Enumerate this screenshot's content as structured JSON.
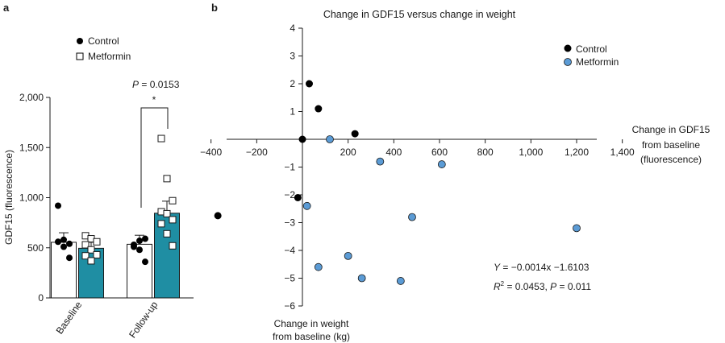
{
  "figure": {
    "panel_a_label": "a",
    "panel_b_label": "b"
  },
  "chart_data": [
    {
      "type": "bar",
      "panel": "a",
      "ylabel": "GDF15 (fluorescence)",
      "ylim": [
        0,
        2000
      ],
      "yticks": [
        0,
        500,
        1000,
        1500,
        2000
      ],
      "ytick_labels": [
        "0",
        "500",
        "1,000",
        "1,500",
        "2,000"
      ],
      "categories": [
        "Baseline",
        "Follow-up"
      ],
      "legend": {
        "placement": "top",
        "entries": [
          "Control",
          "Metformin"
        ]
      },
      "series": [
        {
          "name": "Control",
          "marker": "filled-circle",
          "bar_fill": "#ffffff",
          "values": [
            555,
            535
          ],
          "errors": [
            95,
            90
          ],
          "points": [
            [
              920,
              580,
              540,
              560,
              510,
              400
            ],
            [
              530,
              570,
              590,
              510,
              480,
              360
            ]
          ]
        },
        {
          "name": "Metformin",
          "marker": "open-square",
          "bar_fill": "#1f8ea3",
          "values": [
            495,
            845
          ],
          "errors": [
            60,
            120
          ],
          "points": [
            [
              620,
              590,
              560,
              530,
              480,
              430,
              420,
              370
            ],
            [
              1590,
              1190,
              970,
              860,
              840,
              780,
              740,
              640,
              520
            ]
          ]
        }
      ],
      "annotation": {
        "text": "P = 0.0153",
        "p_prefix": "P",
        "p_rest": " = 0.0153",
        "star": "*"
      }
    },
    {
      "type": "scatter",
      "panel": "b",
      "title": "Change in GDF15 versus change in weight",
      "xlabel_lines": [
        "Change in GDF15",
        "from baseline",
        "(fluorescence)"
      ],
      "ylabel_lines": [
        "Change in weight",
        "from baseline (kg)"
      ],
      "xlim": [
        -500,
        1500
      ],
      "ylim": [
        -6,
        4
      ],
      "xticks": [
        -400,
        -200,
        200,
        400,
        600,
        800,
        1000,
        1200,
        1400
      ],
      "xtick_labels": [
        "−400",
        "−200",
        "200",
        "400",
        "600",
        "800",
        "1,000",
        "1,200",
        "1,400"
      ],
      "yticks": [
        -6,
        -5,
        -4,
        -3,
        -2,
        -1,
        1,
        2,
        3,
        4
      ],
      "ytick_labels": [
        "−6",
        "−5",
        "−4",
        "−3",
        "−2",
        "−1",
        "1",
        "2",
        "3",
        "4"
      ],
      "legend": {
        "placement": "top-right"
      },
      "series": [
        {
          "name": "Control",
          "color": "#000000",
          "points": [
            [
              30,
              2
            ],
            [
              70,
              1.1
            ],
            [
              230,
              0.2
            ],
            [
              0,
              0
            ],
            [
              -20,
              -2.1
            ],
            [
              -370,
              -2.75
            ]
          ]
        },
        {
          "name": "Metformin",
          "color": "#5b9bd5",
          "points": [
            [
              120,
              0
            ],
            [
              340,
              -0.8
            ],
            [
              610,
              -0.9
            ],
            [
              20,
              -2.4
            ],
            [
              480,
              -2.8
            ],
            [
              1200,
              -3.2
            ],
            [
              200,
              -4.2
            ],
            [
              70,
              -4.6
            ],
            [
              260,
              -5
            ],
            [
              430,
              -5.1
            ]
          ]
        }
      ],
      "equation": {
        "y_prefix": "Y",
        "y_rest": " = −0.0014x −1.6103",
        "r_prefix": "R",
        "r_sup": "2",
        "r_rest": " = 0.0453, ",
        "p_prefix": "P",
        "p_rest": " = 0.011"
      }
    }
  ]
}
